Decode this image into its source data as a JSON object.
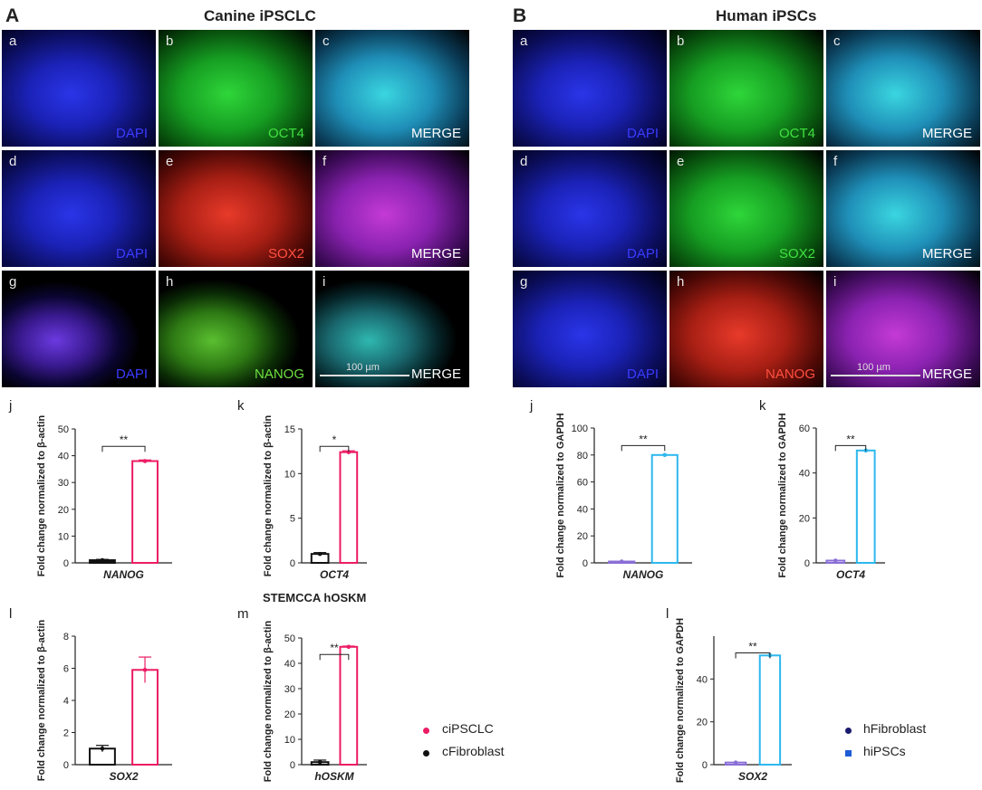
{
  "panel_A": {
    "letter": "A",
    "title": "Canine iPSCLC"
  },
  "panel_B": {
    "letter": "B",
    "title": "Human iPSCs"
  },
  "canine_grid": {
    "tiles": [
      {
        "letter": "a",
        "label": "DAPI",
        "color": "#3b3bff",
        "theme": "blue"
      },
      {
        "letter": "b",
        "label": "OCT4",
        "color": "#40e040",
        "theme": "green"
      },
      {
        "letter": "c",
        "label": "MERGE",
        "color": "#ffffff",
        "theme": "cyan"
      },
      {
        "letter": "d",
        "label": "DAPI",
        "color": "#3b3bff",
        "theme": "blue"
      },
      {
        "letter": "e",
        "label": "SOX2",
        "color": "#ff5040",
        "theme": "red"
      },
      {
        "letter": "f",
        "label": "MERGE",
        "color": "#ffffff",
        "theme": "magenta"
      },
      {
        "letter": "g",
        "label": "DAPI",
        "color": "#3b3bff",
        "theme": "violet"
      },
      {
        "letter": "h",
        "label": "NANOG",
        "color": "#6fe040",
        "theme": "lime"
      },
      {
        "letter": "i",
        "label": "MERGE",
        "color": "#ffffff",
        "theme": "teal",
        "scalebar": "100 µm"
      }
    ]
  },
  "human_grid": {
    "tiles": [
      {
        "letter": "a",
        "label": "DAPI",
        "color": "#3b3bff",
        "theme": "blue"
      },
      {
        "letter": "b",
        "label": "OCT4",
        "color": "#40e040",
        "theme": "green"
      },
      {
        "letter": "c",
        "label": "MERGE",
        "color": "#ffffff",
        "theme": "cyan"
      },
      {
        "letter": "d",
        "label": "DAPI",
        "color": "#3b3bff",
        "theme": "blue"
      },
      {
        "letter": "e",
        "label": "SOX2",
        "color": "#40e040",
        "theme": "green"
      },
      {
        "letter": "f",
        "label": "MERGE",
        "color": "#ffffff",
        "theme": "cyan"
      },
      {
        "letter": "g",
        "label": "DAPI",
        "color": "#3b3bff",
        "theme": "blue"
      },
      {
        "letter": "h",
        "label": "NANOG",
        "color": "#ff5040",
        "theme": "red"
      },
      {
        "letter": "i",
        "label": "MERGE",
        "color": "#ffffff",
        "theme": "magenta",
        "scalebar": "100 µm"
      }
    ]
  },
  "stemcca_title": "STEMCCA hOSKM",
  "legend_canine": [
    {
      "label": "ciPSCLC",
      "color": "#ec1c64"
    },
    {
      "label": "cFibroblast",
      "color": "#111111"
    }
  ],
  "legend_human": [
    {
      "label": "hFibroblast",
      "color": "#1a1a6e",
      "shape": "circle"
    },
    {
      "label": "hiPSCs",
      "color": "#1e5bd6",
      "shape": "square"
    }
  ],
  "chart_data": [
    {
      "id": "cj",
      "letter": "j",
      "type": "bar",
      "xlabel": "NANOG",
      "ylabel": "Fold change normalized to β-actin",
      "ylim": [
        0,
        50
      ],
      "yticks": [
        0,
        10,
        20,
        30,
        40,
        50
      ],
      "bars": [
        {
          "value": 1,
          "err": 0.3,
          "color": "#111111",
          "fill": "#111111"
        },
        {
          "value": 38,
          "err": 0.4,
          "color": "#ec1c64",
          "fill": "#ffffff"
        }
      ],
      "sig": "**"
    },
    {
      "id": "ck",
      "letter": "k",
      "type": "bar",
      "xlabel": "OCT4",
      "ylabel": "Fold change normalized to β-actin",
      "ylim": [
        0,
        15
      ],
      "yticks": [
        0,
        5,
        10,
        15
      ],
      "bars": [
        {
          "value": 1,
          "err": 0.15,
          "color": "#111111",
          "fill": "#ffffff"
        },
        {
          "value": 12.4,
          "err": 0.15,
          "color": "#ec1c64",
          "fill": "#ffffff"
        }
      ],
      "sig": "*"
    },
    {
      "id": "cl",
      "letter": "l",
      "type": "bar",
      "xlabel": "SOX2",
      "ylabel": "Fold change normalized to β-actin",
      "ylim": [
        0,
        8
      ],
      "yticks": [
        0,
        2,
        4,
        6,
        8
      ],
      "bars": [
        {
          "value": 1,
          "err": 0.2,
          "color": "#111111",
          "fill": "#ffffff"
        },
        {
          "value": 5.9,
          "err": 0.8,
          "color": "#ec1c64",
          "fill": "#ffffff"
        }
      ],
      "sig": ""
    },
    {
      "id": "cm",
      "letter": "m",
      "type": "bar",
      "xlabel": "hOSKM",
      "ylabel": "Fold change normalized to β-actin",
      "ylim": [
        0,
        50
      ],
      "yticks": [
        0,
        10,
        20,
        30,
        40,
        50
      ],
      "bars": [
        {
          "value": 1,
          "err": 0.8,
          "color": "#111111",
          "fill": "#ffffff"
        },
        {
          "value": 46.5,
          "err": 0.3,
          "color": "#ec1c64",
          "fill": "#ffffff"
        }
      ],
      "sig": "**"
    },
    {
      "id": "hj",
      "letter": "j",
      "type": "bar",
      "xlabel": "NANOG",
      "ylabel": "Fold change normalized to GAPDH",
      "ylim": [
        0,
        100
      ],
      "yticks": [
        0,
        20,
        40,
        60,
        80,
        100
      ],
      "bars": [
        {
          "value": 1,
          "err": 0,
          "color": "#8a6fd6",
          "fill": "#ffffff"
        },
        {
          "value": 80,
          "err": 0,
          "color": "#2db8ee",
          "fill": "#ffffff"
        }
      ],
      "sig": "**"
    },
    {
      "id": "hk",
      "letter": "k",
      "type": "bar",
      "xlabel": "OCT4",
      "ylabel": "Fold change normalized to GAPDH",
      "ylim": [
        0,
        60
      ],
      "yticks": [
        0,
        20,
        40,
        60
      ],
      "bars": [
        {
          "value": 1,
          "err": 0,
          "color": "#8a6fd6",
          "fill": "#ffffff"
        },
        {
          "value": 50,
          "err": 0,
          "color": "#2db8ee",
          "fill": "#ffffff"
        }
      ],
      "sig": "**"
    },
    {
      "id": "hl",
      "letter": "l",
      "type": "bar",
      "xlabel": "SOX2",
      "ylabel": "Fold change normalized to GAPDH",
      "ylim": [
        0,
        60
      ],
      "yticks": [
        0,
        20,
        40
      ],
      "bars": [
        {
          "value": 1,
          "err": 0,
          "color": "#8a6fd6",
          "fill": "#ffffff"
        },
        {
          "value": 51,
          "err": 0,
          "color": "#2db8ee",
          "fill": "#ffffff"
        }
      ],
      "sig": "**"
    }
  ]
}
